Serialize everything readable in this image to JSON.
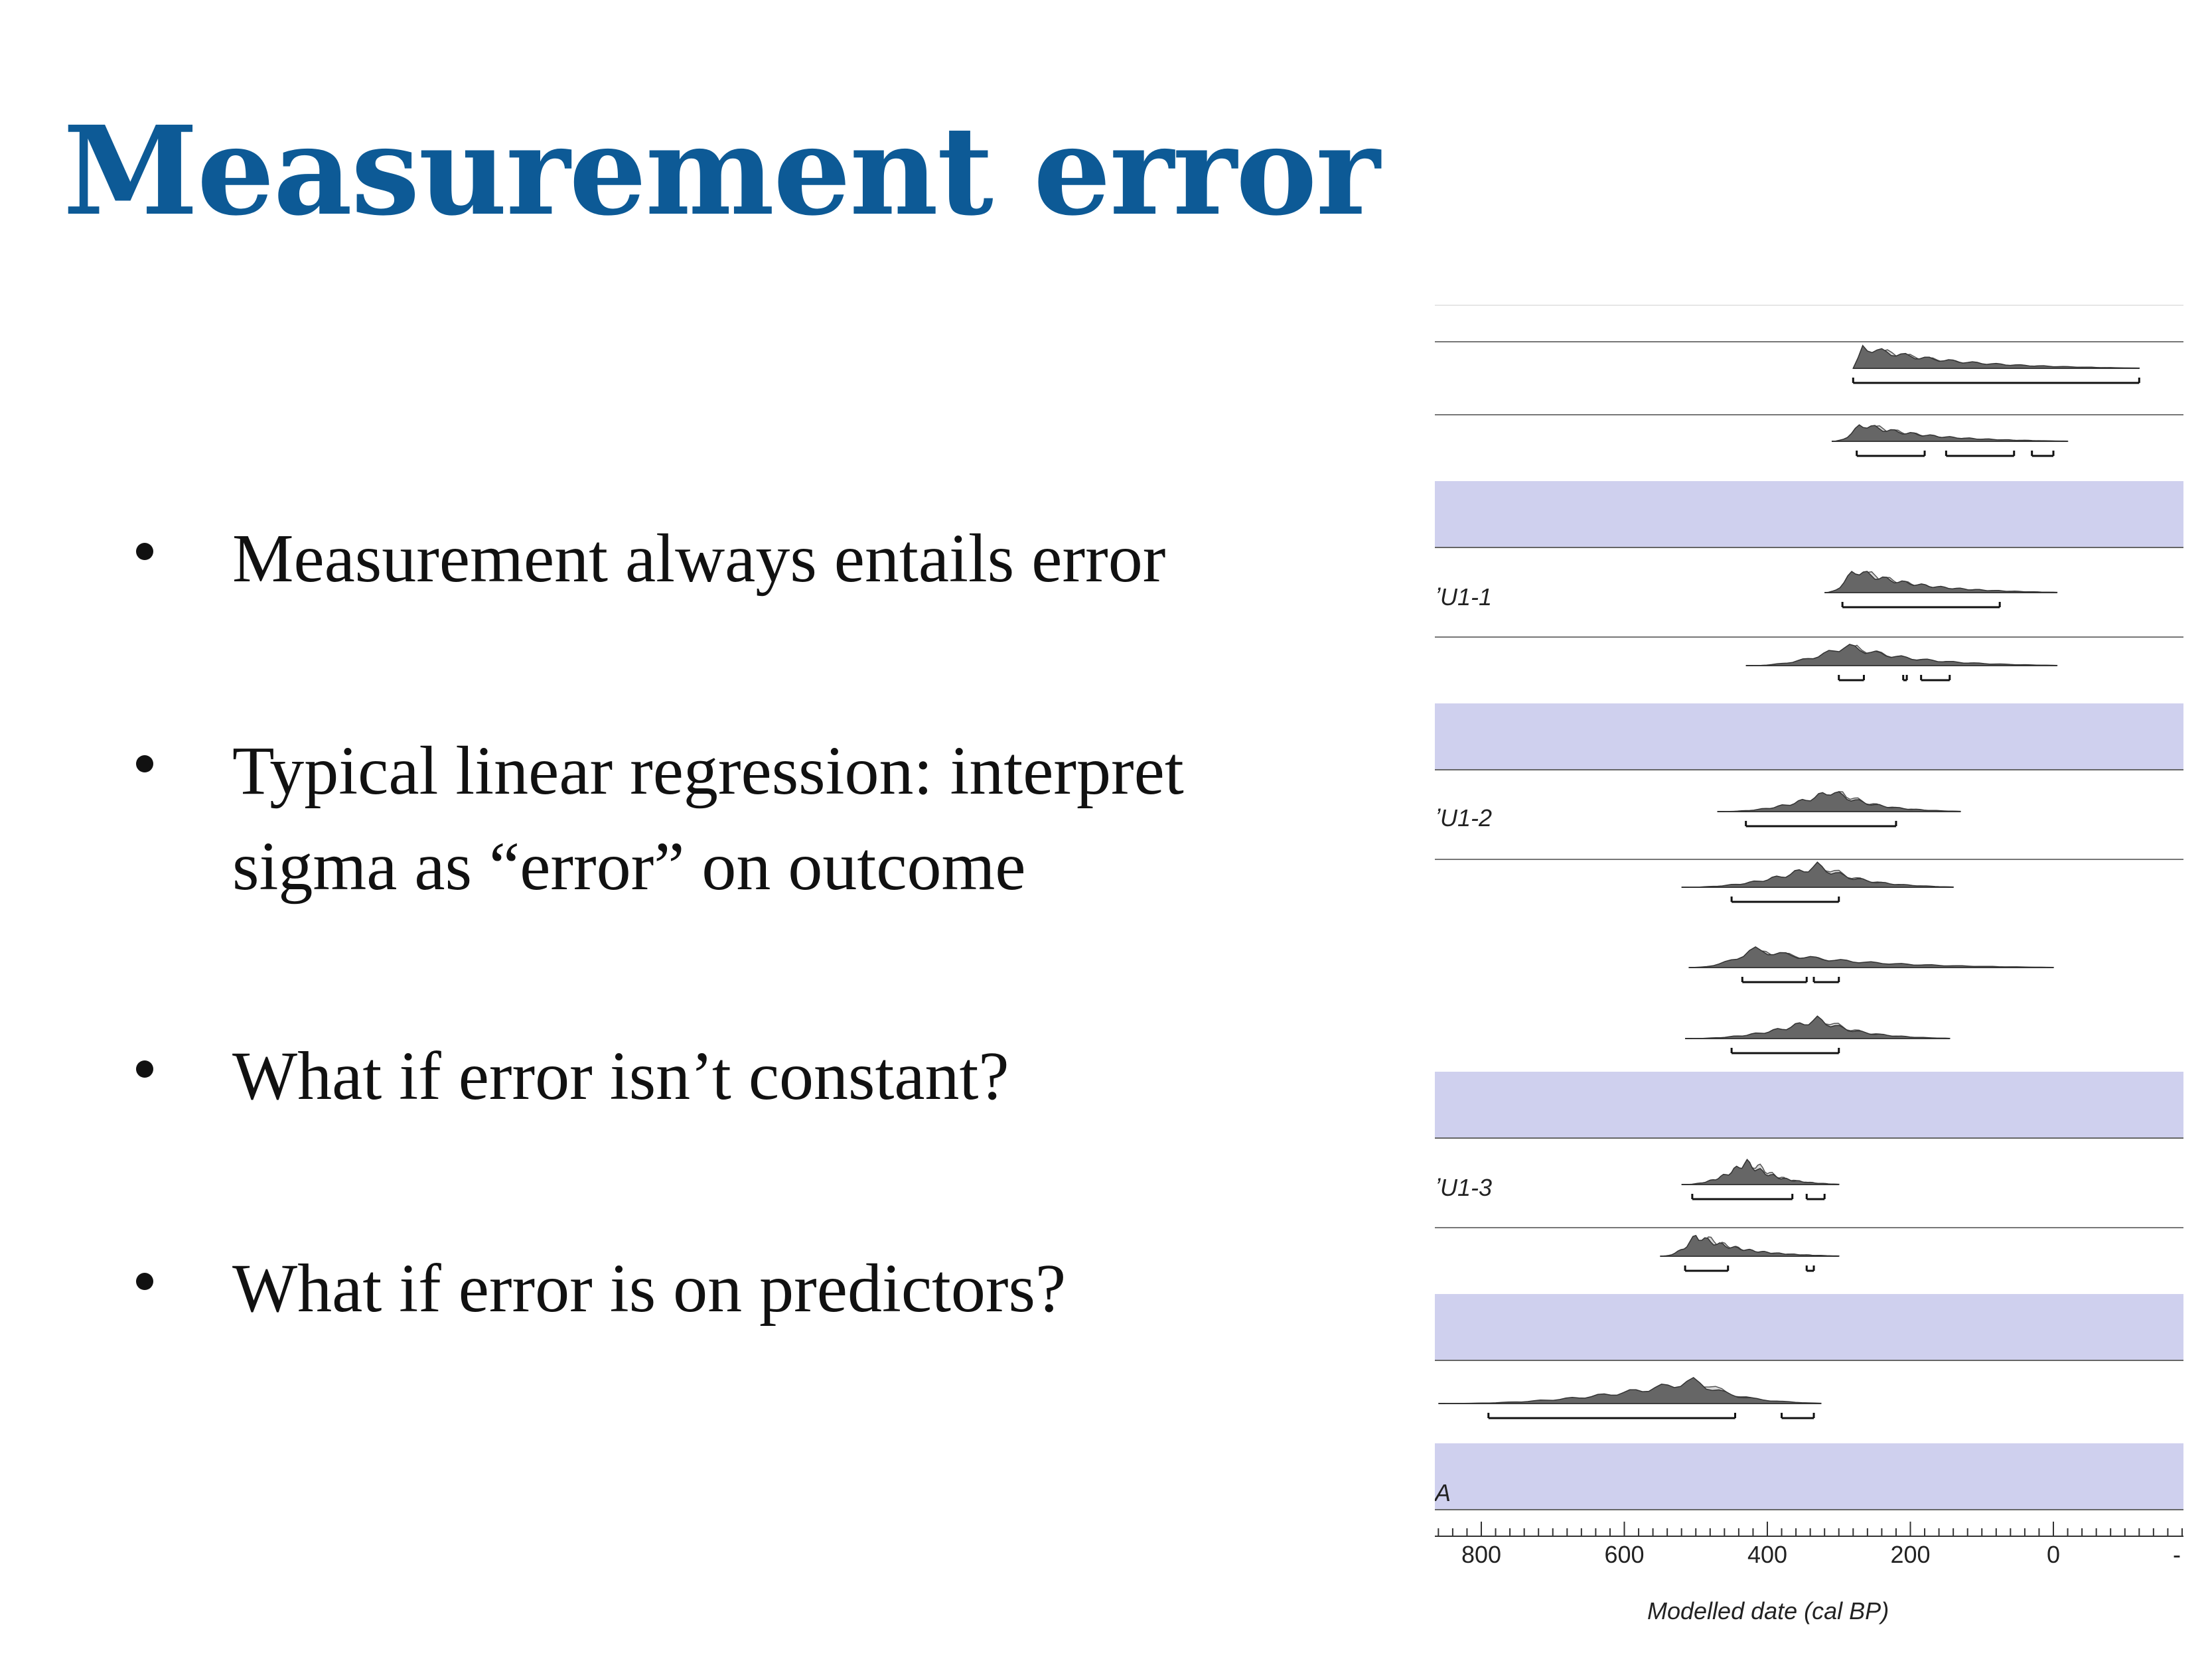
{
  "slide": {
    "title": "Measurement error",
    "bullets": [
      {
        "lines": [
          "Measurement always entails error"
        ]
      },
      {
        "lines": [
          "Typical linear regression: interpret",
          "sigma as “error” on outcome"
        ]
      },
      {
        "lines": [
          "What if error isn’t constant?"
        ]
      },
      {
        "lines": [
          "What if error is on predictors?"
        ]
      }
    ]
  },
  "figure": {
    "axis_title": "Modelled date (cal BP)",
    "tick_labels": [
      "800",
      "600",
      "400",
      "200",
      "0",
      "-"
    ],
    "row_labels": {
      "r2": "ʼU1-1",
      "r4": "ʼU1-2",
      "r8": "ʼU1-3",
      "r11": "A"
    },
    "phase_band_color": "#cfd0ee",
    "density_color": "#666666"
  },
  "chart_data": {
    "type": "area",
    "xlabel": "Modelled date (cal BP)",
    "x_axis_reversed": true,
    "xlim": [
      860,
      -180
    ],
    "x_ticks": [
      800,
      600,
      400,
      200,
      0
    ],
    "rows": [
      {
        "label": "",
        "range": [
          280,
          -120
        ],
        "peak": 270,
        "hpd": [
          [
            280,
            -120
          ]
        ]
      },
      {
        "label": "",
        "range": [
          310,
          -20
        ],
        "peak": 270,
        "hpd": [
          [
            275,
            180
          ],
          [
            150,
            55
          ],
          [
            30,
            0
          ]
        ]
      },
      {
        "label": "ʼU1-1",
        "range": [
          320,
          -5
        ],
        "peak": 280,
        "hpd": [
          [
            295,
            75
          ]
        ]
      },
      {
        "label": "",
        "range": [
          430,
          -5
        ],
        "peak": 290,
        "hpd": [
          [
            300,
            265
          ],
          [
            210,
            205
          ],
          [
            185,
            145
          ]
        ]
      },
      {
        "label": "ʼU1-2",
        "range": [
          470,
          130
        ],
        "peak": 310,
        "hpd": [
          [
            430,
            220
          ]
        ]
      },
      {
        "label": "",
        "range": [
          520,
          140
        ],
        "peak": 330,
        "hpd": [
          [
            450,
            300
          ]
        ]
      },
      {
        "label": "",
        "range": [
          510,
          0
        ],
        "peak": 420,
        "hpd": [
          [
            435,
            345
          ],
          [
            335,
            300
          ]
        ]
      },
      {
        "label": "",
        "range": [
          515,
          145
        ],
        "peak": 330,
        "hpd": [
          [
            450,
            300
          ]
        ]
      },
      {
        "label": "ʼU1-3",
        "range": [
          520,
          300
        ],
        "peak": 430,
        "hpd": [
          [
            505,
            365
          ],
          [
            345,
            320
          ]
        ]
      },
      {
        "label": "",
        "range": [
          550,
          300
        ],
        "peak": 500,
        "hpd": [
          [
            515,
            455
          ],
          [
            345,
            335
          ]
        ]
      },
      {
        "label": "",
        "range": [
          860,
          325
        ],
        "peak": 500,
        "hpd": [
          [
            790,
            445
          ],
          [
            380,
            335
          ]
        ]
      }
    ]
  }
}
